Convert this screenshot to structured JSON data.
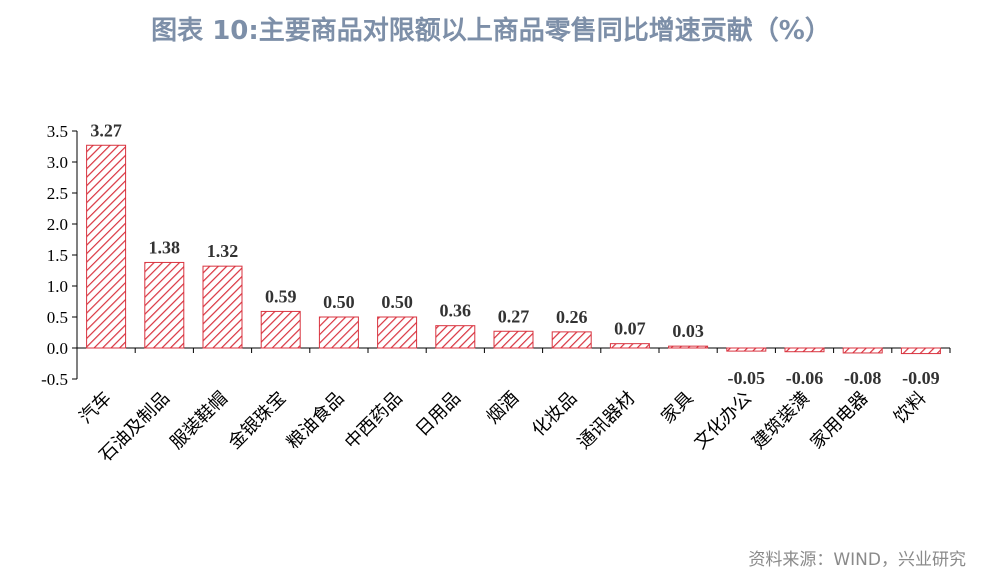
{
  "title": "图表 10:主要商品对限额以上商品零售同比增速贡献（%）",
  "source": "资料来源：WIND，兴业研究",
  "colors": {
    "bar_stroke": "#d9333f",
    "hatch": "#d9333f",
    "title": "#7d8fa8"
  },
  "chart_data": {
    "type": "bar",
    "categories": [
      "汽车",
      "石油及制品",
      "服装鞋帽",
      "金银珠宝",
      "粮油食品",
      "中西药品",
      "日用品",
      "烟酒",
      "化妆品",
      "通讯器材",
      "家具",
      "文化办公",
      "建筑装潢",
      "家用电器",
      "饮料"
    ],
    "values": [
      3.27,
      1.38,
      1.32,
      0.59,
      0.5,
      0.5,
      0.36,
      0.27,
      0.26,
      0.07,
      0.03,
      -0.05,
      -0.06,
      -0.08,
      -0.09
    ],
    "value_labels": [
      "3.27",
      "1.38",
      "1.32",
      "0.59",
      "0.50",
      "0.50",
      "0.36",
      "0.27",
      "0.26",
      "0.07",
      "0.03",
      "-0.05",
      "-0.06",
      "-0.08",
      "-0.09"
    ],
    "yticks": [
      "3.5",
      "3.0",
      "2.5",
      "2.0",
      "1.5",
      "1.0",
      "0.5",
      "0.0",
      "-0.5"
    ],
    "ylim": [
      -0.5,
      3.5
    ],
    "xlabel": "",
    "ylabel": "",
    "bar_fill": "diagonal hatch",
    "grid": false,
    "legend": "none"
  }
}
